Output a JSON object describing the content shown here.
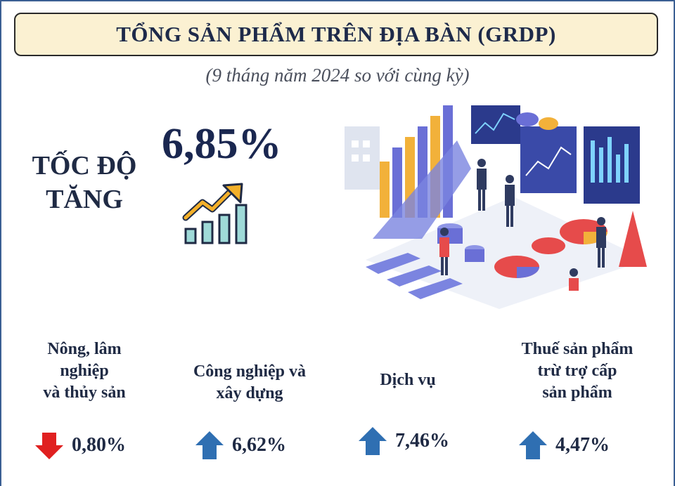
{
  "header": {
    "title": "TỔNG SẢN PHẨM TRÊN ĐỊA BÀN (GRDP)",
    "subtitle": "(9 tháng năm 2024 so với cùng kỳ)"
  },
  "growth": {
    "label_line1": "TỐC ĐỘ",
    "label_line2": "TĂNG",
    "value": "6,85%"
  },
  "colors": {
    "up_arrow": "#2f6fb2",
    "down_arrow": "#e02020",
    "title_bg": "#fbf1d2",
    "frame": "#3b5f93"
  },
  "sectors": [
    {
      "lines": [
        "Nông, lâm",
        "nghiệp",
        "và thủy sản"
      ],
      "value": "0,80%",
      "direction": "down",
      "icon": "down-arrow-icon"
    },
    {
      "lines": [
        "Công nghiệp và",
        "xây dựng"
      ],
      "value": "6,62%",
      "direction": "up",
      "icon": "up-arrow-icon"
    },
    {
      "lines": [
        "Dịch vụ"
      ],
      "value": "7,46%",
      "direction": "up",
      "icon": "up-arrow-icon"
    },
    {
      "lines": [
        "Thuế sản phẩm",
        "trừ trợ cấp",
        "sản phẩm"
      ],
      "value": "4,47%",
      "direction": "up",
      "icon": "up-arrow-icon"
    }
  ]
}
